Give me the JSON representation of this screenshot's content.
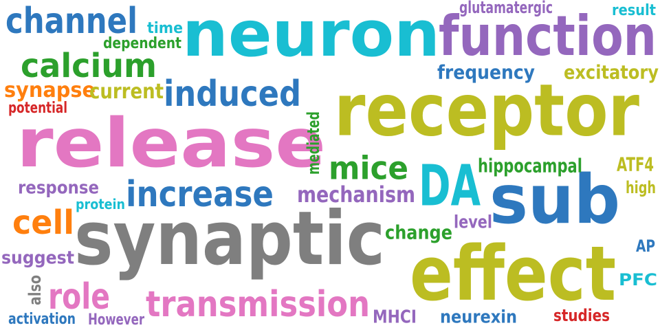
{
  "colors": {
    "blue": "#2e78be",
    "cyan": "#19bed2",
    "purple": "#9467bd",
    "olive": "#bcbd22",
    "green": "#2ca02c",
    "orange": "#ff7f0e",
    "pink": "#e377c2",
    "red": "#d62728",
    "gray": "#7f7f7f"
  },
  "words": [
    {
      "text": "neuron",
      "color": "cyan"
    },
    {
      "text": "function",
      "color": "purple"
    },
    {
      "text": "receptor",
      "color": "olive"
    },
    {
      "text": "release",
      "color": "pink"
    },
    {
      "text": "synaptic",
      "color": "gray"
    },
    {
      "text": "effect",
      "color": "olive"
    },
    {
      "text": "sub",
      "color": "blue"
    },
    {
      "text": "DA",
      "color": "cyan"
    },
    {
      "text": "channel",
      "color": "blue"
    },
    {
      "text": "calcium",
      "color": "green"
    },
    {
      "text": "induced",
      "color": "blue"
    },
    {
      "text": "increase",
      "color": "blue"
    },
    {
      "text": "transmission",
      "color": "pink"
    },
    {
      "text": "mice",
      "color": "green"
    },
    {
      "text": "role",
      "color": "pink"
    },
    {
      "text": "cell",
      "color": "orange"
    },
    {
      "text": "synapse",
      "color": "orange"
    },
    {
      "text": "current",
      "color": "olive"
    },
    {
      "text": "frequency",
      "color": "blue"
    },
    {
      "text": "excitatory",
      "color": "olive"
    },
    {
      "text": "mechanism",
      "color": "purple"
    },
    {
      "text": "hippocampal",
      "color": "green"
    },
    {
      "text": "glutamatergic",
      "color": "purple"
    },
    {
      "text": "result",
      "color": "cyan"
    },
    {
      "text": "time",
      "color": "cyan"
    },
    {
      "text": "dependent",
      "color": "green"
    },
    {
      "text": "potential",
      "color": "red"
    },
    {
      "text": "response",
      "color": "purple"
    },
    {
      "text": "protein",
      "color": "cyan"
    },
    {
      "text": "suggest",
      "color": "purple"
    },
    {
      "text": "also",
      "color": "gray"
    },
    {
      "text": "activation",
      "color": "blue"
    },
    {
      "text": "However",
      "color": "purple"
    },
    {
      "text": "MHCI",
      "color": "purple"
    },
    {
      "text": "neurexin",
      "color": "blue"
    },
    {
      "text": "studies",
      "color": "red"
    },
    {
      "text": "change",
      "color": "green"
    },
    {
      "text": "level",
      "color": "purple"
    },
    {
      "text": "mediated",
      "color": "green"
    },
    {
      "text": "ATF4",
      "color": "olive"
    },
    {
      "text": "high",
      "color": "olive"
    },
    {
      "text": "AP",
      "color": "blue"
    },
    {
      "text": "PFC",
      "color": "cyan"
    }
  ]
}
